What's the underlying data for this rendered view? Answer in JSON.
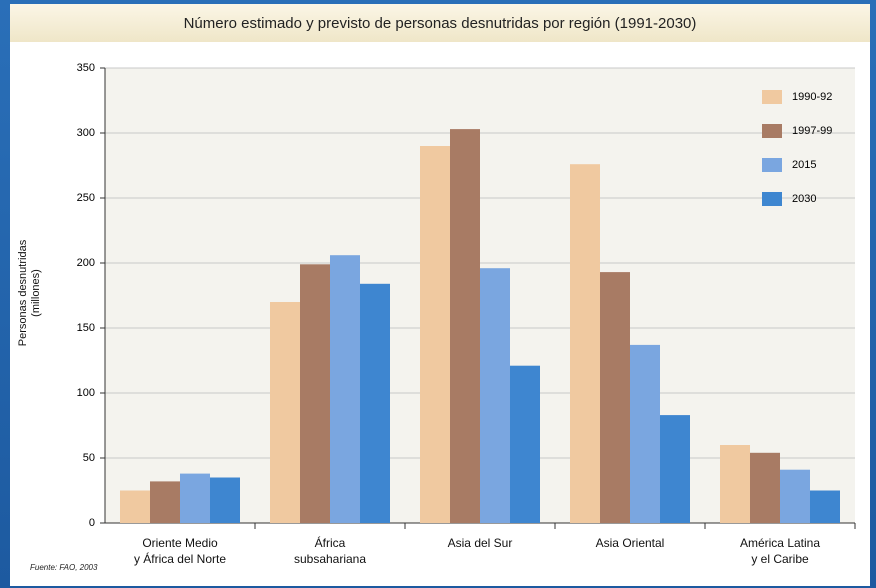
{
  "chart_data": {
    "type": "bar",
    "title": "Número estimado y previsto de personas desnutridas por región (1991-2030)",
    "y_label": "Personas desnutridas\n(millones)",
    "source": "Fuente: FAO, 2003",
    "categories": [
      "Oriente Medio\ny África del Norte",
      "África\nsubsahariana",
      "Asia del Sur",
      "Asia Oriental",
      "América Latina\ny el Caribe"
    ],
    "series": [
      {
        "name": "1990-92",
        "color": "#f0c9a0",
        "values": [
          25,
          170,
          290,
          276,
          60
        ]
      },
      {
        "name": "1997-99",
        "color": "#a87b64",
        "values": [
          32,
          199,
          303,
          193,
          54
        ]
      },
      {
        "name": "2015",
        "color": "#7aa6e0",
        "values": [
          38,
          206,
          196,
          137,
          41
        ]
      },
      {
        "name": "2030",
        "color": "#3e86d0",
        "values": [
          35,
          184,
          121,
          83,
          25
        ]
      }
    ],
    "ylim": [
      0,
      350
    ],
    "yticks": [
      0,
      50,
      100,
      150,
      200,
      250,
      300,
      350
    ],
    "grid": true,
    "legend": "top-right"
  }
}
